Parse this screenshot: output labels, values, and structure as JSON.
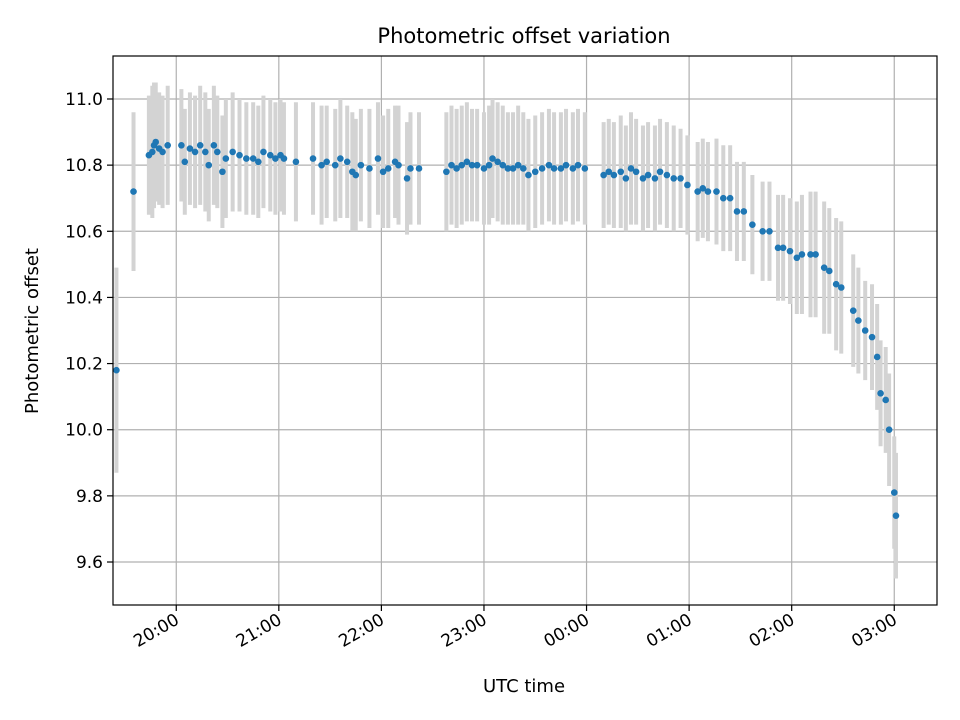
{
  "chart_data": {
    "type": "scatter",
    "title": "Photometric offset variation",
    "xlabel": "UTC time",
    "ylabel": "Photometric offset",
    "x_unit": "UTC time (HH:MM, hours continuing past midnight)",
    "xlim": [
      "19:23",
      "27:25"
    ],
    "ylim": [
      9.47,
      11.13
    ],
    "xticks": [
      "20:00",
      "21:00",
      "22:00",
      "23:00",
      "00:00",
      "01:00",
      "02:00",
      "03:00"
    ],
    "yticks": [
      "9.6",
      "9.8",
      "10.0",
      "10.2",
      "10.4",
      "10.6",
      "10.8",
      "11.0"
    ],
    "grid": true,
    "colors": {
      "points": "#1f77b4",
      "errorbars": "#d3d3d3",
      "grid": "#b0b0b0"
    },
    "series": [
      {
        "points": [
          [
            "19:25",
            10.18,
            0.31
          ],
          [
            "19:35",
            10.72,
            0.24
          ],
          [
            "19:44",
            10.83,
            0.18
          ],
          [
            "19:46",
            10.84,
            0.2
          ],
          [
            "19:47",
            10.86,
            0.19
          ],
          [
            "19:48",
            10.87,
            0.18
          ],
          [
            "19:50",
            10.85,
            0.17
          ],
          [
            "19:52",
            10.84,
            0.17
          ],
          [
            "19:55",
            10.86,
            0.18
          ],
          [
            "20:03",
            10.86,
            0.17
          ],
          [
            "20:05",
            10.81,
            0.16
          ],
          [
            "20:08",
            10.85,
            0.17
          ],
          [
            "20:11",
            10.84,
            0.17
          ],
          [
            "20:14",
            10.86,
            0.18
          ],
          [
            "20:17",
            10.84,
            0.18
          ],
          [
            "20:19",
            10.8,
            0.17
          ],
          [
            "20:22",
            10.86,
            0.18
          ],
          [
            "20:24",
            10.84,
            0.17
          ],
          [
            "20:27",
            10.78,
            0.17
          ],
          [
            "20:29",
            10.82,
            0.18
          ],
          [
            "20:33",
            10.84,
            0.18
          ],
          [
            "20:37",
            10.83,
            0.17
          ],
          [
            "20:41",
            10.82,
            0.17
          ],
          [
            "20:45",
            10.82,
            0.17
          ],
          [
            "20:48",
            10.81,
            0.17
          ],
          [
            "20:51",
            10.84,
            0.17
          ],
          [
            "20:55",
            10.83,
            0.17
          ],
          [
            "20:58",
            10.82,
            0.17
          ],
          [
            "21:01",
            10.83,
            0.17
          ],
          [
            "21:03",
            10.82,
            0.17
          ],
          [
            "21:10",
            10.81,
            0.18
          ],
          [
            "21:20",
            10.82,
            0.17
          ],
          [
            "21:25",
            10.8,
            0.18
          ],
          [
            "21:28",
            10.81,
            0.17
          ],
          [
            "21:33",
            10.8,
            0.17
          ],
          [
            "21:36",
            10.82,
            0.18
          ],
          [
            "21:40",
            10.81,
            0.17
          ],
          [
            "21:43",
            10.78,
            0.18
          ],
          [
            "21:45",
            10.77,
            0.17
          ],
          [
            "21:48",
            10.8,
            0.17
          ],
          [
            "21:53",
            10.79,
            0.18
          ],
          [
            "21:58",
            10.82,
            0.17
          ],
          [
            "22:01",
            10.78,
            0.17
          ],
          [
            "22:04",
            10.79,
            0.18
          ],
          [
            "22:08",
            10.81,
            0.17
          ],
          [
            "22:10",
            10.8,
            0.18
          ],
          [
            "22:15",
            10.76,
            0.17
          ],
          [
            "22:17",
            10.79,
            0.17
          ],
          [
            "22:22",
            10.79,
            0.17
          ],
          [
            "22:38",
            10.78,
            0.18
          ],
          [
            "22:41",
            10.8,
            0.18
          ],
          [
            "22:44",
            10.79,
            0.18
          ],
          [
            "22:47",
            10.8,
            0.18
          ],
          [
            "22:50",
            10.81,
            0.18
          ],
          [
            "22:53",
            10.8,
            0.17
          ],
          [
            "22:56",
            10.8,
            0.17
          ],
          [
            "23:00",
            10.79,
            0.17
          ],
          [
            "23:03",
            10.8,
            0.18
          ],
          [
            "23:05",
            10.82,
            0.18
          ],
          [
            "23:08",
            10.81,
            0.18
          ],
          [
            "23:11",
            10.8,
            0.18
          ],
          [
            "23:14",
            10.79,
            0.17
          ],
          [
            "23:17",
            10.79,
            0.17
          ],
          [
            "23:20",
            10.8,
            0.18
          ],
          [
            "23:23",
            10.79,
            0.17
          ],
          [
            "23:26",
            10.77,
            0.17
          ],
          [
            "23:30",
            10.78,
            0.17
          ],
          [
            "23:34",
            10.79,
            0.17
          ],
          [
            "23:38",
            10.8,
            0.17
          ],
          [
            "23:41",
            10.79,
            0.17
          ],
          [
            "23:45",
            10.79,
            0.17
          ],
          [
            "23:48",
            10.8,
            0.17
          ],
          [
            "23:52",
            10.79,
            0.17
          ],
          [
            "23:55",
            10.8,
            0.17
          ],
          [
            "23:59",
            10.79,
            0.17
          ],
          [
            "24:10",
            10.77,
            0.16
          ],
          [
            "24:13",
            10.78,
            0.16
          ],
          [
            "24:16",
            10.77,
            0.16
          ],
          [
            "24:20",
            10.78,
            0.17
          ],
          [
            "24:23",
            10.76,
            0.16
          ],
          [
            "24:26",
            10.79,
            0.17
          ],
          [
            "24:29",
            10.78,
            0.16
          ],
          [
            "24:33",
            10.76,
            0.16
          ],
          [
            "24:36",
            10.77,
            0.16
          ],
          [
            "24:40",
            10.76,
            0.16
          ],
          [
            "24:43",
            10.78,
            0.16
          ],
          [
            "24:47",
            10.77,
            0.16
          ],
          [
            "24:51",
            10.76,
            0.16
          ],
          [
            "24:55",
            10.76,
            0.15
          ],
          [
            "24:59",
            10.74,
            0.15
          ],
          [
            "25:05",
            10.72,
            0.15
          ],
          [
            "25:08",
            10.73,
            0.15
          ],
          [
            "25:11",
            10.72,
            0.15
          ],
          [
            "25:16",
            10.72,
            0.16
          ],
          [
            "25:20",
            10.7,
            0.16
          ],
          [
            "25:24",
            10.7,
            0.16
          ],
          [
            "25:28",
            10.66,
            0.15
          ],
          [
            "25:32",
            10.66,
            0.15
          ],
          [
            "25:37",
            10.62,
            0.15
          ],
          [
            "25:43",
            10.6,
            0.15
          ],
          [
            "25:47",
            10.6,
            0.15
          ],
          [
            "25:52",
            10.55,
            0.16
          ],
          [
            "25:55",
            10.55,
            0.16
          ],
          [
            "25:59",
            10.54,
            0.16
          ],
          [
            "26:03",
            10.52,
            0.17
          ],
          [
            "26:06",
            10.53,
            0.18
          ],
          [
            "26:11",
            10.53,
            0.19
          ],
          [
            "26:14",
            10.53,
            0.19
          ],
          [
            "26:19",
            10.49,
            0.2
          ],
          [
            "26:22",
            10.48,
            0.19
          ],
          [
            "26:26",
            10.44,
            0.2
          ],
          [
            "26:29",
            10.43,
            0.2
          ],
          [
            "26:36",
            10.36,
            0.17
          ],
          [
            "26:39",
            10.33,
            0.16
          ],
          [
            "26:43",
            10.3,
            0.15
          ],
          [
            "26:47",
            10.28,
            0.16
          ],
          [
            "26:50",
            10.22,
            0.16
          ],
          [
            "26:52",
            10.11,
            0.16
          ],
          [
            "26:55",
            10.09,
            0.16
          ],
          [
            "26:57",
            10.0,
            0.17
          ],
          [
            "27:00",
            9.81,
            0.17
          ],
          [
            "27:01",
            9.74,
            0.19
          ]
        ]
      }
    ]
  }
}
